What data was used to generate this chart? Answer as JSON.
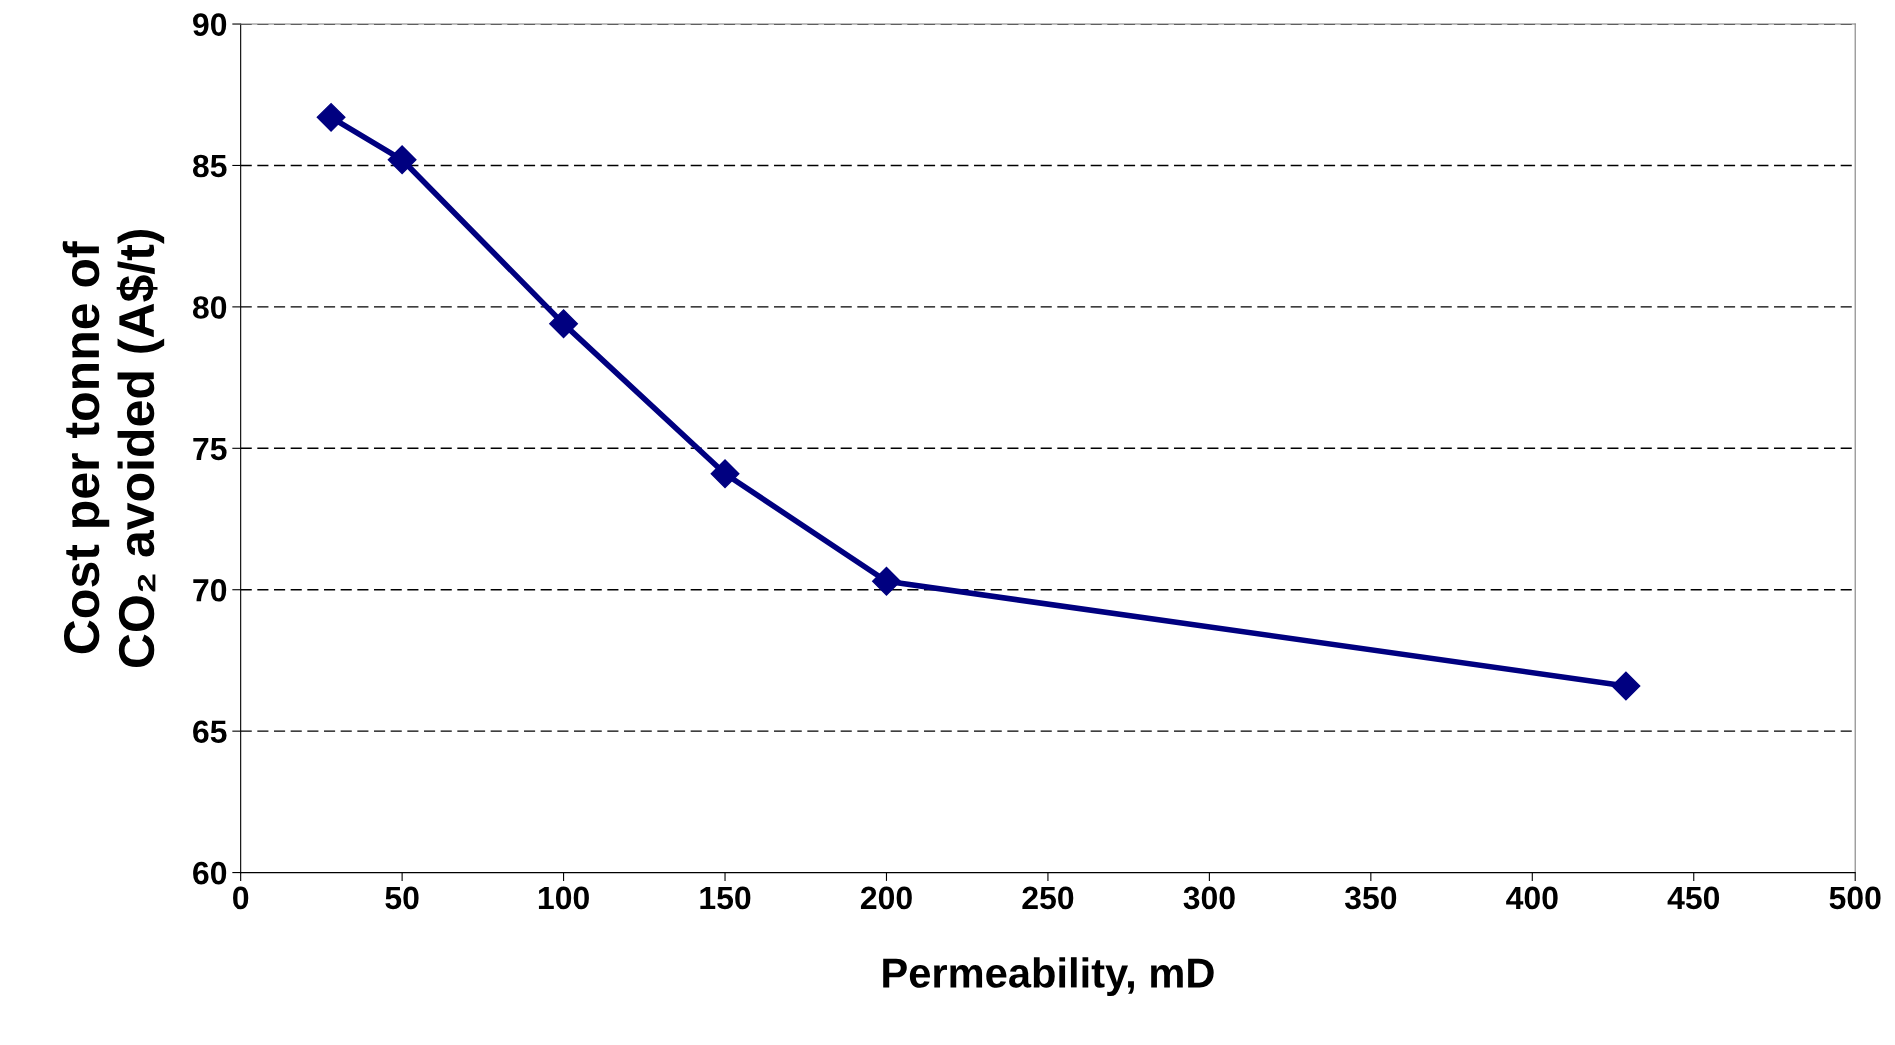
{
  "chart_data": {
    "type": "line",
    "xlabel": "Permeability, mD",
    "ylabel": "Cost per tonne of\nCO₂ avoided (A$/t)",
    "x": [
      28,
      50,
      100,
      150,
      200,
      429
    ],
    "series": [
      {
        "color": "#000080",
        "values": [
          86.7,
          85.2,
          79.4,
          74.1,
          70.3,
          66.6
        ]
      }
    ],
    "xlim": [
      0,
      500
    ],
    "xticks": [
      0,
      50,
      100,
      150,
      200,
      250,
      300,
      350,
      400,
      450,
      500
    ],
    "ylim": [
      60,
      90
    ],
    "yticks": [
      60,
      65,
      70,
      75,
      80,
      85,
      90
    ],
    "grid": "y",
    "marker": "diamond",
    "line_style": "solid",
    "legend": false
  }
}
